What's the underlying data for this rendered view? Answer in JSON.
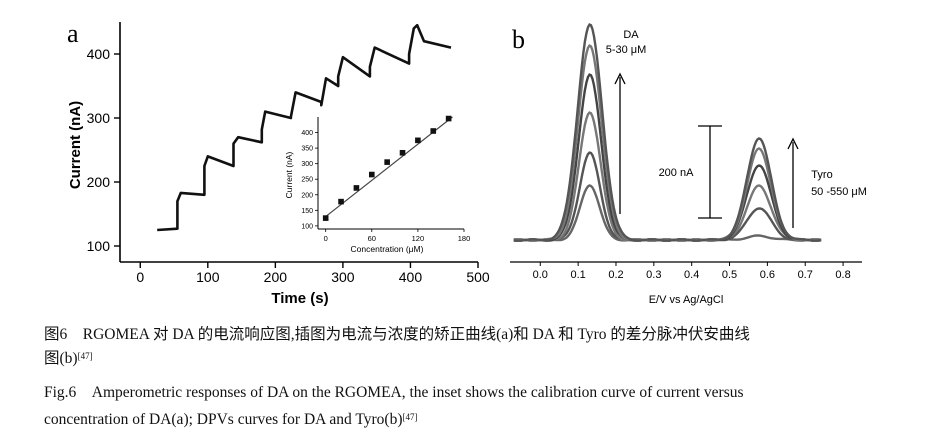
{
  "panel_a": {
    "label": "a",
    "xlabel": "Time (s)",
    "ylabel": "Current (nA)",
    "xticks": [
      "0",
      "100",
      "200",
      "300",
      "400",
      "500"
    ],
    "yticks": [
      "100",
      "200",
      "300",
      "400"
    ],
    "inset": {
      "xlabel": "Concentration (μM)",
      "ylabel": "Current (nA)",
      "xticks": [
        "0",
        "60",
        "120",
        "180"
      ],
      "yticks": [
        "100",
        "150",
        "200",
        "250",
        "300",
        "350",
        "400"
      ]
    }
  },
  "panel_b": {
    "label": "b",
    "xlabel": "E/V vs Ag/AgCl",
    "xticks": [
      "0.0",
      "0.1",
      "0.2",
      "0.3",
      "0.4",
      "0.5",
      "0.6",
      "0.7",
      "0.8"
    ],
    "da_label": "DA",
    "da_range": "5-30 μM",
    "scale_label": "200 nA",
    "tyro_label": "Tyro",
    "tyro_range": "50 -550 μM"
  },
  "caption": {
    "cn_line1": "图6　RGOMEA 对 DA 的电流响应图,插图为电流与浓度的矫正曲线(a)和 DA 和 Tyro 的差分脉冲伏安曲线",
    "cn_line2": "图(b)",
    "en_line1": "Fig.6　Amperometric responses of DA on the RGOMEA, the inset shows the calibration curve of current versus",
    "en_line2": "concentration of DA(a); DPVs curves for DA and Tyro(b)",
    "ref": "[47]"
  },
  "chart_data": [
    {
      "type": "line",
      "panel": "a",
      "xlabel": "Time (s)",
      "ylabel": "Current (nA)",
      "xlim": [
        -30,
        500
      ],
      "ylim": [
        75,
        450
      ],
      "series": [
        {
          "x": [
            25,
            55,
            55,
            60,
            95,
            95,
            100,
            138,
            138,
            145,
            180,
            180,
            185,
            223,
            223,
            230,
            268,
            268,
            275,
            293,
            293,
            300,
            340,
            340,
            347,
            398,
            398,
            405,
            410,
            410,
            420,
            460
          ],
          "y": [
            125,
            127,
            170,
            183,
            180,
            225,
            240,
            225,
            260,
            270,
            262,
            282,
            310,
            300,
            302,
            340,
            325,
            320,
            362,
            350,
            365,
            395,
            365,
            380,
            410,
            385,
            400,
            440,
            445,
            445,
            420,
            410
          ]
        }
      ]
    },
    {
      "type": "scatter",
      "panel": "a-inset",
      "xlabel": "Concentration (μM)",
      "ylabel": "Current (nA)",
      "xlim": [
        -10,
        180
      ],
      "ylim": [
        90,
        450
      ],
      "series": [
        {
          "x": [
            0,
            20,
            40,
            60,
            80,
            100,
            120,
            140,
            160
          ],
          "y": [
            125,
            178,
            222,
            265,
            305,
            335,
            375,
            405,
            445
          ]
        }
      ],
      "fit_line": {
        "x": [
          0,
          165
        ],
        "y": [
          130,
          450
        ]
      }
    },
    {
      "type": "line",
      "panel": "b",
      "xlabel": "E/V vs Ag/AgCl",
      "xlim": [
        -0.08,
        0.85
      ],
      "series": [
        {
          "peak_da": 5.5,
          "peak_tyro": 0.4
        },
        {
          "peak_da": 8.7,
          "peak_tyro": 3.2
        },
        {
          "peak_da": 12.8,
          "peak_tyro": 5.4
        },
        {
          "peak_da": 16.5,
          "peak_tyro": 7.5
        },
        {
          "peak_da": 19.5,
          "peak_tyro": 9.1
        },
        {
          "peak_da": 21.5,
          "peak_tyro": 10.2
        }
      ],
      "scale_bar": "200 nA"
    }
  ]
}
